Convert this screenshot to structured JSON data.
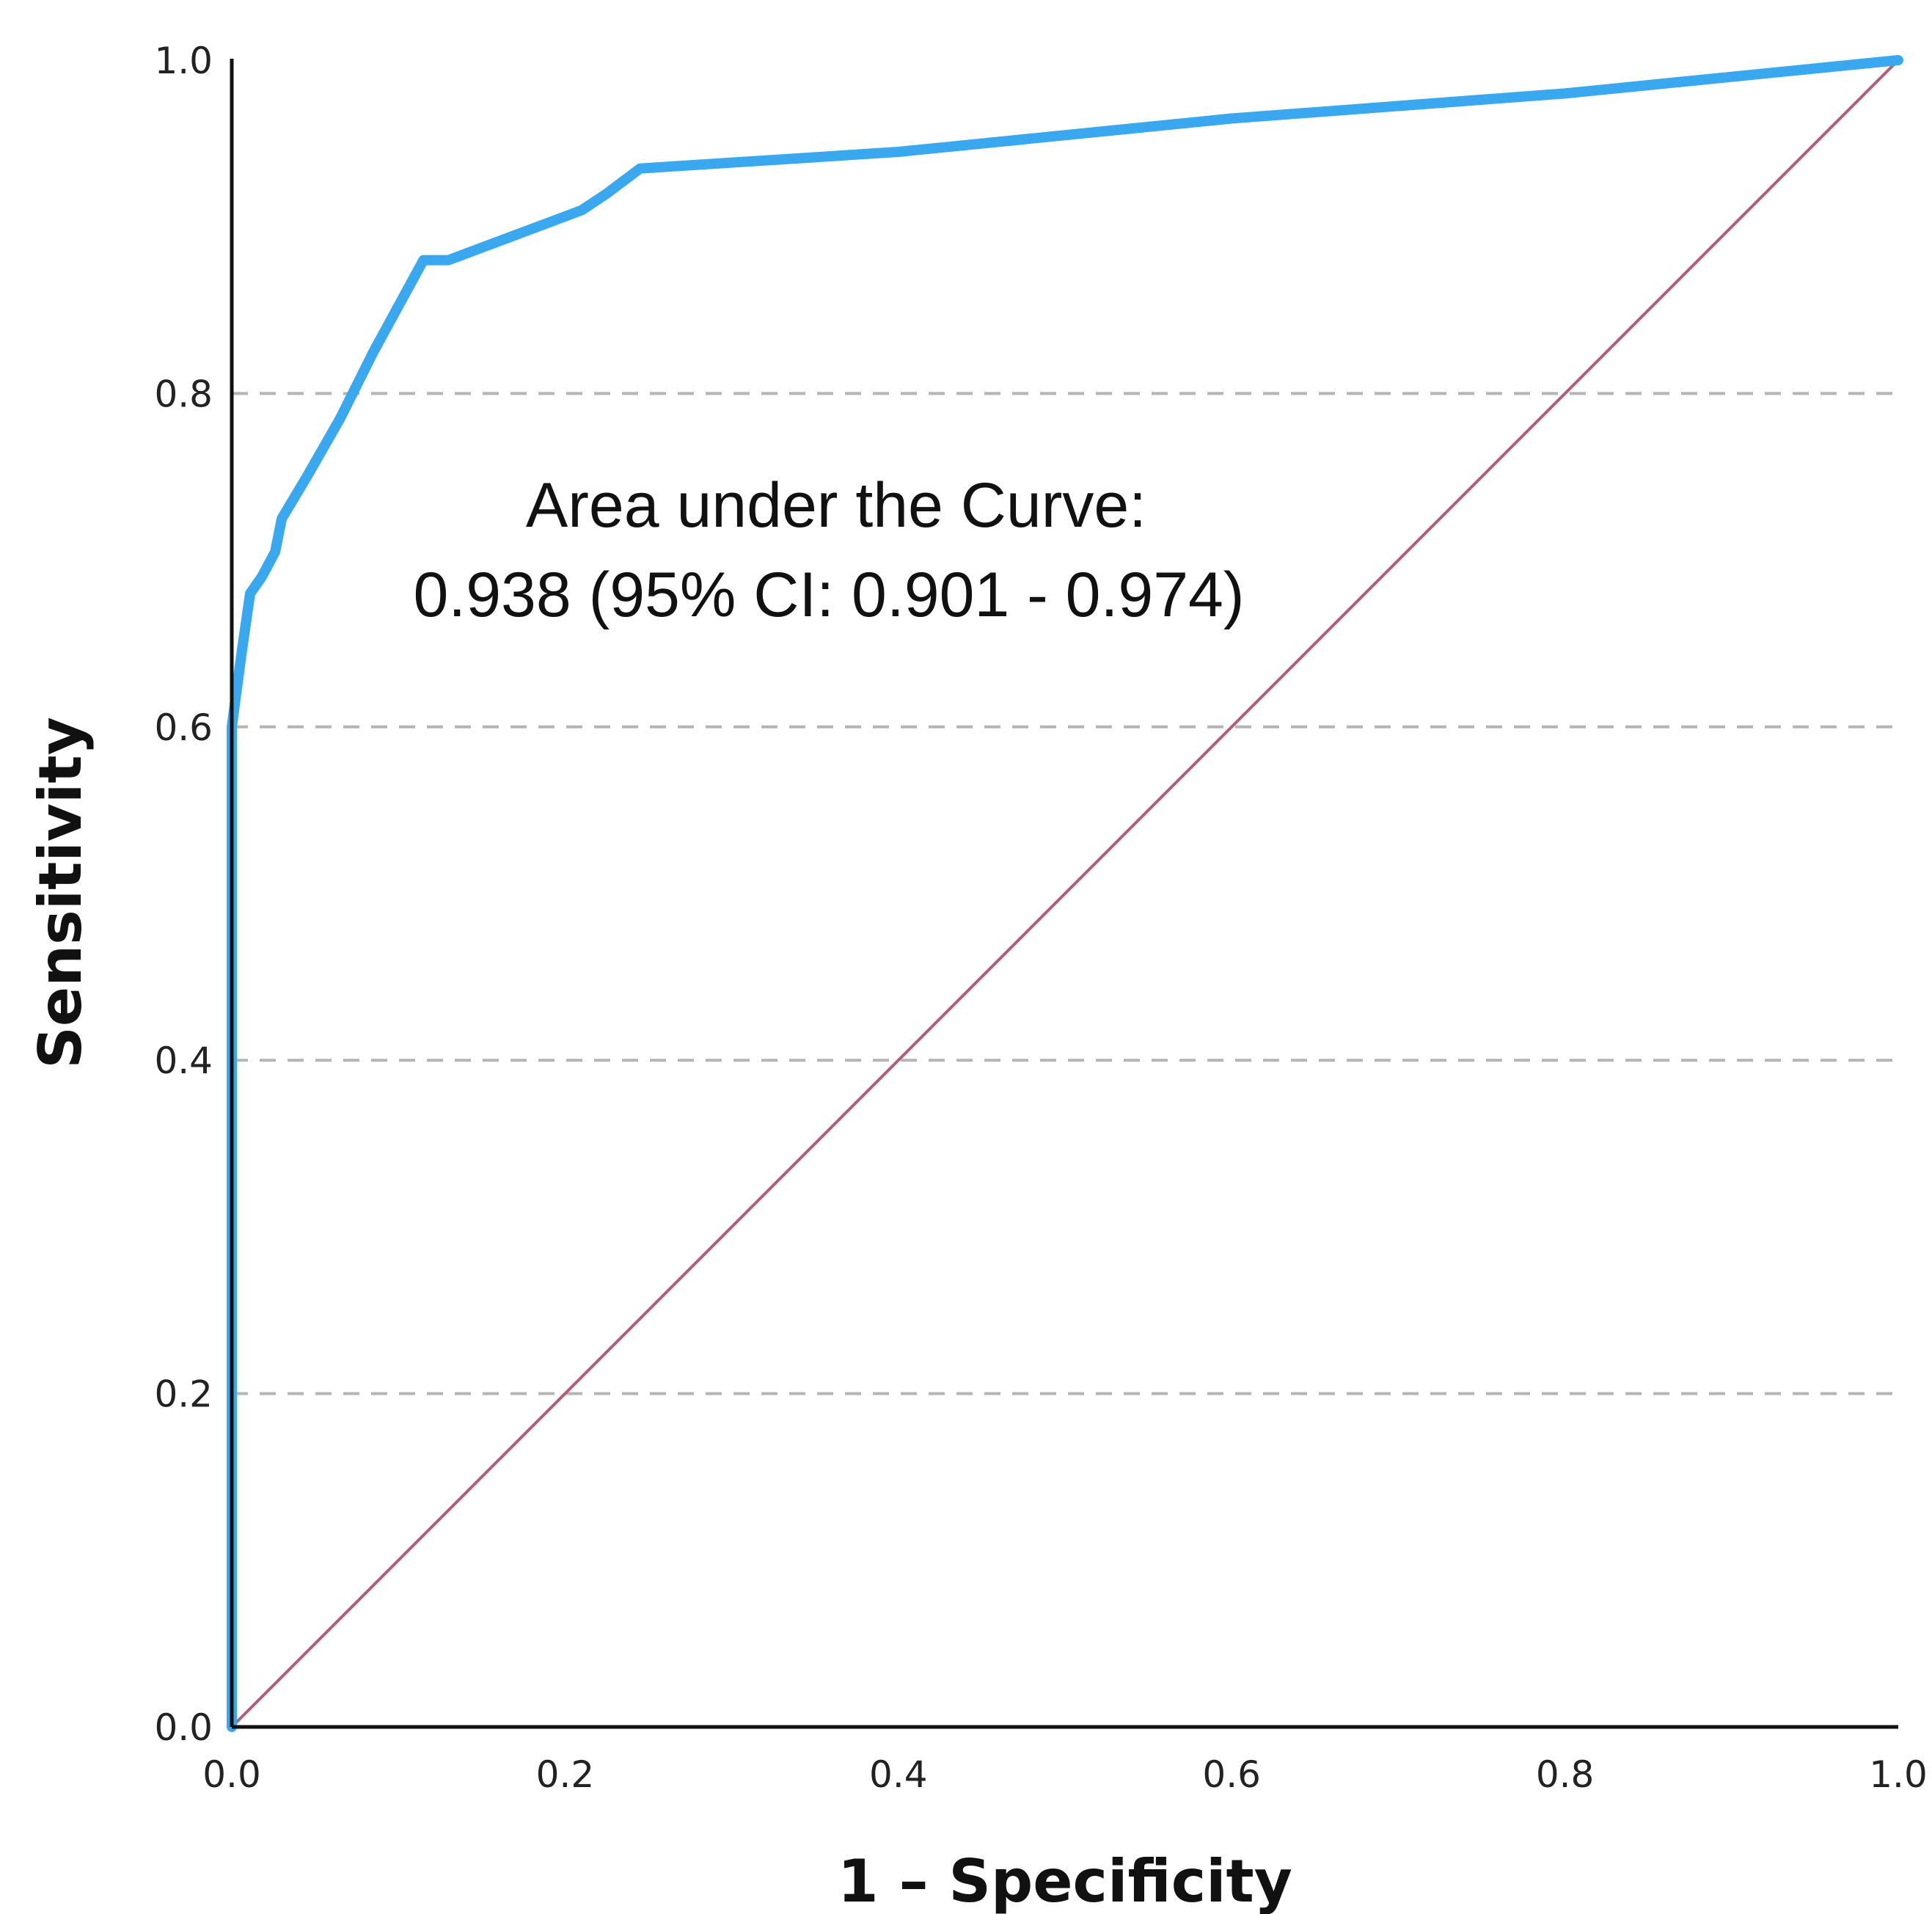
{
  "chart_data": {
    "type": "line",
    "xlabel": "1 – Specificity",
    "ylabel": "Sensitivity",
    "xlim": [
      0,
      1
    ],
    "ylim": [
      0,
      1
    ],
    "x_ticks": [
      "0.0",
      "0.2",
      "0.4",
      "0.6",
      "0.8",
      "1.0"
    ],
    "y_ticks": [
      "0.0",
      "0.2",
      "0.4",
      "0.6",
      "0.8",
      "1.0"
    ],
    "grid": "horizontal dashed",
    "annotation": [
      "Area under the Curve:",
      "0.938 (95% CI: 0.901 - 0.974)"
    ],
    "series": [
      {
        "color": "#3aa8ef",
        "x": [
          0.0,
          0.0,
          0.002,
          0.006,
          0.011,
          0.018,
          0.026,
          0.028,
          0.03,
          0.045,
          0.065,
          0.085,
          0.115,
          0.125,
          0.13,
          0.17,
          0.21,
          0.225,
          0.245,
          0.4,
          0.6,
          0.8,
          1.0
        ],
        "y": [
          0.0,
          0.6,
          0.615,
          0.645,
          0.68,
          0.69,
          0.705,
          0.715,
          0.725,
          0.75,
          0.785,
          0.825,
          0.88,
          0.88,
          0.88,
          0.895,
          0.91,
          0.92,
          0.935,
          0.945,
          0.965,
          0.98,
          1.0
        ]
      },
      {
        "color": "#b25d7a",
        "x": [
          0.0,
          1.0
        ],
        "y": [
          0.0,
          1.0
        ]
      }
    ],
    "colors": {
      "roc": "#3aa8ef",
      "reference": "#b25d7a",
      "grid": "#b5b5b5",
      "axis": "#111111"
    }
  }
}
